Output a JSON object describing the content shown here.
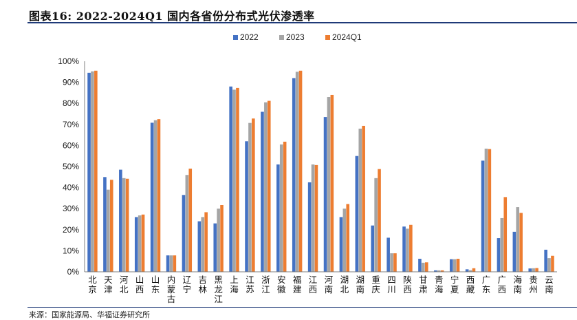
{
  "header": {
    "title": "图表16:  2022-2024Q1 国内各省份分布式光伏渗透率"
  },
  "footer": {
    "source": "来源：国家能源局、华福证券研究所"
  },
  "chart_data": {
    "type": "bar",
    "title": "",
    "ylabel": "",
    "xlabel": "",
    "ylim": [
      0,
      100
    ],
    "yticks": [
      "0%",
      "10%",
      "20%",
      "30%",
      "40%",
      "50%",
      "60%",
      "70%",
      "80%",
      "90%",
      "100%"
    ],
    "legend_position": "top",
    "categories": [
      "北京",
      "天津",
      "河北",
      "山西",
      "山东",
      "内蒙古",
      "辽宁",
      "吉林",
      "黑龙江",
      "上海",
      "江苏",
      "浙江",
      "安徽",
      "福建",
      "江西",
      "河南",
      "湖北",
      "湖南",
      "重庆",
      "四川",
      "陕西",
      "甘肃",
      "青海",
      "宁夏",
      "西藏",
      "广东",
      "广西",
      "海南",
      "贵州",
      "云南"
    ],
    "series": [
      {
        "name": "2022",
        "color": "#4472c4",
        "values": [
          94.5,
          45,
          48.5,
          26,
          70.8,
          7.8,
          36.5,
          24,
          23,
          88,
          62,
          76,
          51,
          92,
          42.5,
          73.5,
          26,
          55,
          22,
          16.2,
          21.5,
          6.2,
          0.7,
          6,
          1.2,
          52.8,
          16,
          19,
          1.6,
          10.5
        ]
      },
      {
        "name": "2023",
        "color": "#a5a5a5",
        "values": [
          95.2,
          39,
          44.5,
          26.8,
          72,
          7.8,
          46,
          26,
          30,
          86.5,
          70.7,
          80.5,
          60.5,
          95,
          51,
          83,
          30,
          68,
          44.5,
          8.8,
          20.5,
          4.3,
          0.7,
          6,
          0.8,
          58.5,
          25.5,
          30.7,
          1.7,
          6.5
        ]
      },
      {
        "name": "2024Q1",
        "color": "#ed7d31",
        "values": [
          95.5,
          43.7,
          44.2,
          27.2,
          72.5,
          7.8,
          49,
          28.3,
          31.7,
          87.3,
          72.8,
          81.2,
          61.8,
          95.5,
          50.7,
          84,
          32.2,
          69.3,
          48.8,
          8.8,
          22.3,
          4.5,
          0.7,
          6.2,
          1.7,
          58.3,
          35.5,
          28,
          1.8,
          7.6
        ]
      }
    ]
  }
}
